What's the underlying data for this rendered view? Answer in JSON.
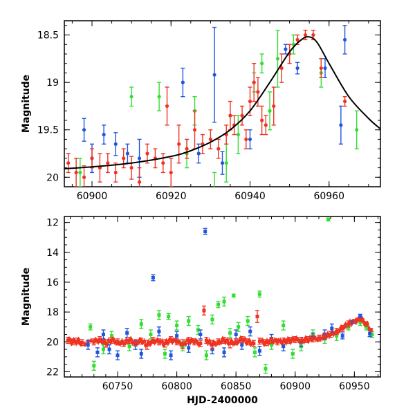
{
  "chart_data": [
    {
      "type": "scatter",
      "panel": "top",
      "xlabel": "",
      "ylabel": "Magnitude",
      "xlim": [
        60893,
        60973
      ],
      "ylim": [
        20.1,
        18.35
      ],
      "xticks": [
        60900,
        60920,
        60940,
        60960
      ],
      "xtick_labels": [
        "60900",
        "60920",
        "60940",
        "60960"
      ],
      "yticks": [
        18.5,
        19,
        19.5,
        20
      ],
      "ytick_labels": [
        "18.5",
        "19",
        "19.5",
        "20"
      ],
      "model_curve": {
        "color": "#000000",
        "x": [
          60893,
          60900,
          60910,
          60920,
          60925,
          60930,
          60935,
          60940,
          60945,
          60950,
          60953,
          60955,
          60957,
          60960,
          60965,
          60970,
          60973
        ],
        "y": [
          19.91,
          19.89,
          19.85,
          19.78,
          19.72,
          19.63,
          19.5,
          19.3,
          19.0,
          18.68,
          18.55,
          18.52,
          18.58,
          18.8,
          19.15,
          19.38,
          19.49
        ]
      },
      "series": [
        {
          "name": "red",
          "color": "#ee3322",
          "points": [
            [
              60894,
              19.85,
              0.1
            ],
            [
              60896,
              19.95,
              0.15
            ],
            [
              60898,
              20.0,
              0.12
            ],
            [
              60900,
              19.8,
              0.1
            ],
            [
              60902,
              19.9,
              0.15
            ],
            [
              60904,
              19.85,
              0.1
            ],
            [
              60906,
              19.95,
              0.1
            ],
            [
              60908,
              19.8,
              0.1
            ],
            [
              60910,
              19.9,
              0.12
            ],
            [
              60912,
              20.05,
              0.15
            ],
            [
              60914,
              19.75,
              0.1
            ],
            [
              60916,
              19.8,
              0.1
            ],
            [
              60918,
              19.85,
              0.1
            ],
            [
              60919,
              19.25,
              0.2
            ],
            [
              60920,
              19.95,
              0.15
            ],
            [
              60922,
              19.65,
              0.2
            ],
            [
              60924,
              19.7,
              0.1
            ],
            [
              60926,
              19.5,
              0.2
            ],
            [
              60928,
              19.65,
              0.1
            ],
            [
              60930,
              19.6,
              0.1
            ],
            [
              60932,
              19.7,
              0.1
            ],
            [
              60934,
              19.55,
              0.1
            ],
            [
              60935,
              19.35,
              0.15
            ],
            [
              60936,
              19.45,
              0.1
            ],
            [
              60938,
              19.35,
              0.1
            ],
            [
              60939,
              19.6,
              0.1
            ],
            [
              60940,
              19.2,
              0.15
            ],
            [
              60941,
              19.0,
              0.2
            ],
            [
              60942,
              19.1,
              0.15
            ],
            [
              60943,
              19.4,
              0.15
            ],
            [
              60944,
              19.45,
              0.1
            ],
            [
              60946,
              19.25,
              0.2
            ],
            [
              60948,
              18.85,
              0.15
            ],
            [
              60950,
              18.7,
              0.1
            ],
            [
              60952,
              18.55,
              0.05
            ],
            [
              60954,
              18.5,
              0.05
            ],
            [
              60956,
              18.5,
              0.05
            ],
            [
              60958,
              18.85,
              0.1
            ],
            [
              60964,
              19.2,
              0.05
            ]
          ]
        },
        {
          "name": "green",
          "color": "#33dd33",
          "points": [
            [
              60897,
              19.95,
              0.15
            ],
            [
              60910,
              19.15,
              0.1
            ],
            [
              60917,
              19.15,
              0.15
            ],
            [
              60924,
              19.75,
              0.15
            ],
            [
              60926,
              19.3,
              0.15
            ],
            [
              60931,
              20.15,
              0.2
            ],
            [
              60934,
              19.85,
              0.2
            ],
            [
              60937,
              19.55,
              0.2
            ],
            [
              60941,
              19.0,
              0.1
            ],
            [
              60943,
              18.8,
              0.1
            ],
            [
              60945,
              19.3,
              0.2
            ],
            [
              60947,
              18.75,
              0.3
            ],
            [
              60951,
              18.6,
              0.1
            ],
            [
              60958,
              18.9,
              0.15
            ],
            [
              60967,
              19.5,
              0.2
            ]
          ]
        },
        {
          "name": "blue",
          "color": "#2255dd",
          "points": [
            [
              60898,
              19.5,
              0.12
            ],
            [
              60900,
              19.8,
              0.15
            ],
            [
              60903,
              19.55,
              0.1
            ],
            [
              60906,
              19.65,
              0.12
            ],
            [
              60909,
              19.75,
              0.1
            ],
            [
              60912,
              19.8,
              0.2
            ],
            [
              60923,
              19.0,
              0.15
            ],
            [
              60927,
              19.75,
              0.1
            ],
            [
              60931,
              18.92,
              0.5
            ],
            [
              60933,
              19.85,
              0.12
            ],
            [
              60940,
              19.6,
              0.1
            ],
            [
              60949,
              18.65,
              0.05
            ],
            [
              60952,
              18.85,
              0.06
            ],
            [
              60959,
              18.85,
              0.1
            ],
            [
              60963,
              19.45,
              0.2
            ],
            [
              60964,
              18.55,
              0.15
            ]
          ]
        }
      ]
    },
    {
      "type": "scatter",
      "panel": "bottom",
      "xlabel": "HJD-2400000",
      "ylabel": "Magnitude",
      "xlim": [
        60705,
        60972
      ],
      "ylim": [
        22.35,
        11.6
      ],
      "xticks": [
        60750,
        60800,
        60850,
        60900,
        60950
      ],
      "xtick_labels": [
        "60750",
        "60800",
        "60850",
        "60900",
        "60950"
      ],
      "yticks": [
        12,
        14,
        16,
        18,
        20,
        22
      ],
      "ytick_labels": [
        "12",
        "14",
        "16",
        "18",
        "20",
        "22"
      ],
      "series": [
        {
          "name": "red",
          "color": "#ee3322",
          "baseline": "dense band near magnitude 20 from 60708 to 60935 rising to 18.5 near 60955",
          "points": [
            [
              60708,
              19.9,
              0.2
            ],
            [
              60712,
              20.0,
              0.2
            ],
            [
              60716,
              19.95,
              0.2
            ],
            [
              60720,
              20.05,
              0.2
            ],
            [
              60730,
              20.0,
              0.2
            ],
            [
              60735,
              19.85,
              0.2
            ],
            [
              60740,
              20.1,
              0.25
            ],
            [
              60745,
              19.9,
              0.2
            ],
            [
              60750,
              20.0,
              0.2
            ],
            [
              60755,
              20.1,
              0.2
            ],
            [
              60760,
              19.9,
              0.2
            ],
            [
              60765,
              20.05,
              0.2
            ],
            [
              60770,
              19.95,
              0.2
            ],
            [
              60775,
              20.2,
              0.3
            ],
            [
              60780,
              19.9,
              0.2
            ],
            [
              60785,
              20.0,
              0.2
            ],
            [
              60790,
              20.1,
              0.25
            ],
            [
              60795,
              19.85,
              0.2
            ],
            [
              60800,
              20.0,
              0.2
            ],
            [
              60805,
              20.15,
              0.3
            ],
            [
              60810,
              19.9,
              0.2
            ],
            [
              60815,
              20.0,
              0.2
            ],
            [
              60820,
              20.1,
              0.2
            ],
            [
              60823,
              17.9,
              0.3
            ],
            [
              60825,
              19.9,
              0.2
            ],
            [
              60830,
              20.2,
              0.3
            ],
            [
              60835,
              20.0,
              0.2
            ],
            [
              60840,
              19.9,
              0.2
            ],
            [
              60845,
              20.1,
              0.3
            ],
            [
              60850,
              20.0,
              0.2
            ],
            [
              60855,
              19.85,
              0.2
            ],
            [
              60860,
              20.0,
              0.2
            ],
            [
              60865,
              20.1,
              0.2
            ],
            [
              60868,
              18.3,
              0.4
            ],
            [
              60870,
              19.95,
              0.2
            ],
            [
              60875,
              20.05,
              0.2
            ],
            [
              60880,
              19.9,
              0.2
            ],
            [
              60885,
              20.0,
              0.2
            ],
            [
              60890,
              19.95,
              0.2
            ],
            [
              60895,
              19.9,
              0.2
            ],
            [
              60900,
              19.85,
              0.2
            ],
            [
              60905,
              19.9,
              0.2
            ],
            [
              60910,
              19.85,
              0.2
            ],
            [
              60915,
              19.8,
              0.2
            ],
            [
              60920,
              19.75,
              0.2
            ],
            [
              60925,
              19.65,
              0.2
            ],
            [
              60930,
              19.5,
              0.2
            ],
            [
              60935,
              19.3,
              0.2
            ],
            [
              60940,
              19.1,
              0.2
            ],
            [
              60945,
              18.8,
              0.2
            ],
            [
              60950,
              18.6,
              0.1
            ],
            [
              60953,
              18.5,
              0.1
            ],
            [
              60956,
              18.55,
              0.1
            ],
            [
              60960,
              18.8,
              0.15
            ],
            [
              60964,
              19.2,
              0.1
            ]
          ]
        },
        {
          "name": "green",
          "color": "#33dd33",
          "points": [
            [
              60727,
              19.0,
              0.2
            ],
            [
              60730,
              21.6,
              0.3
            ],
            [
              60738,
              20.5,
              0.3
            ],
            [
              60745,
              19.6,
              0.3
            ],
            [
              60760,
              20.3,
              0.3
            ],
            [
              60770,
              18.8,
              0.3
            ],
            [
              60778,
              19.5,
              0.3
            ],
            [
              60785,
              18.2,
              0.3
            ],
            [
              60790,
              20.8,
              0.3
            ],
            [
              60793,
              18.3,
              0.2
            ],
            [
              60800,
              18.9,
              0.3
            ],
            [
              60805,
              20.3,
              0.3
            ],
            [
              60810,
              18.6,
              0.3
            ],
            [
              60818,
              19.2,
              0.3
            ],
            [
              60825,
              20.9,
              0.3
            ],
            [
              60830,
              18.5,
              0.3
            ],
            [
              60835,
              17.5,
              0.2
            ],
            [
              60840,
              17.3,
              0.3
            ],
            [
              60845,
              19.4,
              0.3
            ],
            [
              60848,
              16.9,
              0.1
            ],
            [
              60852,
              19.0,
              0.3
            ],
            [
              60860,
              18.6,
              0.3
            ],
            [
              60866,
              20.7,
              0.3
            ],
            [
              60870,
              16.8,
              0.2
            ],
            [
              60875,
              21.8,
              0.3
            ],
            [
              60880,
              20.2,
              0.3
            ],
            [
              60890,
              18.9,
              0.3
            ],
            [
              60898,
              20.8,
              0.3
            ],
            [
              60905,
              20.3,
              0.3
            ],
            [
              60915,
              19.5,
              0.3
            ],
            [
              60925,
              19.8,
              0.3
            ],
            [
              60928,
              11.8,
              0.1
            ],
            [
              60935,
              19.6,
              0.3
            ],
            [
              60945,
              19.0,
              0.2
            ],
            [
              60955,
              18.7,
              0.2
            ],
            [
              60960,
              19.0,
              0.2
            ],
            [
              60965,
              19.5,
              0.2
            ]
          ]
        },
        {
          "name": "blue",
          "color": "#2255dd",
          "points": [
            [
              60725,
              20.2,
              0.3
            ],
            [
              60733,
              20.7,
              0.3
            ],
            [
              60738,
              19.5,
              0.3
            ],
            [
              60743,
              20.5,
              0.3
            ],
            [
              60750,
              20.9,
              0.3
            ],
            [
              60758,
              19.4,
              0.3
            ],
            [
              60765,
              20.2,
              0.3
            ],
            [
              60770,
              20.8,
              0.3
            ],
            [
              60780,
              15.7,
              0.2
            ],
            [
              60785,
              19.3,
              0.3
            ],
            [
              60795,
              20.9,
              0.3
            ],
            [
              60800,
              19.6,
              0.3
            ],
            [
              60810,
              20.4,
              0.3
            ],
            [
              60820,
              19.5,
              0.3
            ],
            [
              60824,
              12.6,
              0.2
            ],
            [
              60830,
              20.5,
              0.3
            ],
            [
              60840,
              20.7,
              0.3
            ],
            [
              60850,
              19.5,
              0.3
            ],
            [
              60855,
              20.2,
              0.3
            ],
            [
              60862,
              19.3,
              0.3
            ],
            [
              60870,
              20.6,
              0.3
            ],
            [
              60880,
              19.8,
              0.3
            ],
            [
              60890,
              20.3,
              0.3
            ],
            [
              60905,
              20.0,
              0.3
            ],
            [
              60915,
              19.7,
              0.3
            ],
            [
              60925,
              19.5,
              0.3
            ],
            [
              60931,
              19.1,
              0.3
            ],
            [
              60940,
              19.6,
              0.2
            ],
            [
              60949,
              18.65,
              0.1
            ],
            [
              60955,
              18.3,
              0.15
            ],
            [
              60963,
              19.45,
              0.2
            ]
          ]
        }
      ]
    }
  ]
}
